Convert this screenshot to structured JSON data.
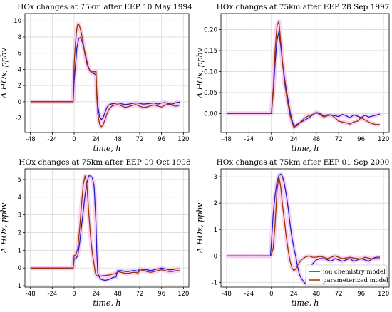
{
  "colors": {
    "ion": "#1f1fcc",
    "param": "#9a3300",
    "shade": "#f6c8ef",
    "grid": "#d9d9d9"
  },
  "legend": {
    "items": [
      {
        "label": "ion chemistry model",
        "color": "#1f1fcc"
      },
      {
        "label": "parameterized model",
        "color": "#9a3300"
      }
    ]
  },
  "chart_data": [
    {
      "type": "line",
      "title": "HOx changes at 75km after EEP 10 May 1994",
      "xlabel": "time, h",
      "ylabel": "Δ HOx, ppbv",
      "xlim": [
        -54,
        126
      ],
      "ylim": [
        -3.8,
        10.9
      ],
      "xticks": [
        -48,
        -24,
        0,
        24,
        48,
        72,
        96,
        120
      ],
      "yticks": [
        -2,
        0,
        2,
        4,
        6,
        8,
        10
      ],
      "grid": true,
      "series": [
        {
          "name": "ion chemistry model",
          "color": "#1f1fcc",
          "x": [
            -48,
            -1,
            0,
            1,
            2,
            3,
            5,
            7,
            9,
            11,
            13,
            15,
            17,
            19,
            21,
            23,
            24,
            25,
            26,
            28,
            30,
            32,
            34,
            36,
            38,
            40,
            42,
            45,
            48,
            52,
            56,
            60,
            64,
            68,
            72,
            76,
            80,
            84,
            88,
            92,
            96,
            100,
            104,
            108,
            112,
            116
          ],
          "y": [
            0,
            0,
            2.5,
            4.0,
            5.2,
            6.6,
            7.8,
            7.95,
            7.4,
            6.5,
            5.5,
            4.5,
            3.9,
            3.6,
            3.5,
            3.4,
            3.3,
            1.0,
            -0.5,
            -1.9,
            -2.2,
            -1.9,
            -1.3,
            -0.7,
            -0.4,
            -0.3,
            -0.25,
            -0.2,
            -0.15,
            -0.25,
            -0.35,
            -0.3,
            -0.2,
            -0.15,
            -0.2,
            -0.3,
            -0.25,
            -0.2,
            -0.15,
            -0.3,
            -0.15,
            -0.1,
            -0.25,
            -0.3,
            -0.1,
            -0.05
          ]
        },
        {
          "name": "parameterized model",
          "color": "#9a3300",
          "x": [
            -48,
            -1,
            0,
            1,
            2,
            3,
            4,
            5,
            6,
            8,
            10,
            12,
            14,
            16,
            18,
            20,
            22,
            23,
            24,
            25,
            26,
            28,
            30,
            32,
            34,
            36,
            38,
            40,
            42,
            45,
            48,
            52,
            56,
            60,
            64,
            68,
            72,
            76,
            80,
            84,
            88,
            92,
            96,
            100,
            104,
            108,
            112,
            116
          ],
          "y": [
            0,
            0,
            4.5,
            6.5,
            8.0,
            9.0,
            9.6,
            9.6,
            9.3,
            8.5,
            7.2,
            5.8,
            4.7,
            4.1,
            3.8,
            3.7,
            3.7,
            3.7,
            3.8,
            0.5,
            -1.5,
            -2.8,
            -3.1,
            -2.8,
            -2.2,
            -1.5,
            -1.0,
            -0.7,
            -0.5,
            -0.4,
            -0.35,
            -0.5,
            -0.7,
            -0.6,
            -0.45,
            -0.35,
            -0.55,
            -0.7,
            -0.65,
            -0.5,
            -0.4,
            -0.55,
            -0.65,
            -0.4,
            -0.3,
            -0.45,
            -0.55,
            -0.4
          ]
        }
      ]
    },
    {
      "type": "line",
      "title": "HOx changes at 75km after EEP 28 Sep 1997",
      "xlabel": "time, h",
      "ylabel": "Δ HOx, ppbv",
      "xlim": [
        -54,
        126
      ],
      "ylim": [
        -0.045,
        0.238
      ],
      "xticks": [
        -48,
        -24,
        0,
        24,
        48,
        72,
        96,
        120
      ],
      "yticks": [
        0.0,
        0.05,
        0.1,
        0.15,
        0.2
      ],
      "ytick_labels": [
        "0.00",
        "0.05",
        "0.10",
        "0.15",
        "0.20"
      ],
      "grid": true,
      "series": [
        {
          "name": "ion chemistry model",
          "color": "#1f1fcc",
          "x": [
            -48,
            0,
            2,
            4,
            6,
            8,
            10,
            12,
            14,
            16,
            18,
            20,
            22,
            24,
            28,
            32,
            36,
            40,
            44,
            48,
            52,
            56,
            60,
            64,
            68,
            72,
            76,
            80,
            84,
            88,
            92,
            96,
            100,
            104,
            108,
            112,
            116
          ],
          "y": [
            0,
            0,
            0.05,
            0.12,
            0.175,
            0.195,
            0.16,
            0.12,
            0.085,
            0.055,
            0.03,
            0.005,
            -0.015,
            -0.03,
            -0.025,
            -0.02,
            -0.015,
            -0.01,
            -0.003,
            0.003,
            0.0,
            -0.005,
            -0.003,
            -0.003,
            -0.005,
            -0.007,
            -0.002,
            -0.005,
            -0.01,
            -0.003,
            -0.006,
            -0.01,
            -0.004,
            -0.008,
            -0.006,
            -0.004,
            -0.001
          ]
        },
        {
          "name": "parameterized model",
          "color": "#9a3300",
          "x": [
            -48,
            0,
            2,
            4,
            6,
            8,
            10,
            12,
            14,
            16,
            18,
            20,
            22,
            24,
            28,
            32,
            36,
            40,
            44,
            48,
            52,
            56,
            60,
            64,
            68,
            72,
            76,
            80,
            84,
            88,
            92,
            96,
            100,
            104,
            108,
            112,
            116
          ],
          "y": [
            0,
            0,
            0.06,
            0.15,
            0.21,
            0.22,
            0.17,
            0.12,
            0.075,
            0.045,
            0.02,
            -0.005,
            -0.02,
            -0.033,
            -0.028,
            -0.018,
            -0.01,
            -0.005,
            -0.002,
            0.002,
            -0.002,
            -0.008,
            -0.005,
            -0.003,
            -0.01,
            -0.018,
            -0.02,
            -0.022,
            -0.025,
            -0.02,
            -0.018,
            -0.01,
            -0.015,
            -0.02,
            -0.024,
            -0.026,
            -0.026
          ]
        }
      ]
    },
    {
      "type": "line",
      "title": "HOx changes at 75km after EEP 09 Oct 1998",
      "xlabel": "time, h",
      "ylabel": "Δ HOx, ppbv",
      "xlim": [
        -54,
        126
      ],
      "ylim": [
        -1.08,
        5.6
      ],
      "xticks": [
        -48,
        -24,
        0,
        24,
        48,
        72,
        96,
        120
      ],
      "yticks": [
        -1,
        0,
        1,
        2,
        3,
        4,
        5
      ],
      "grid": true,
      "series": [
        {
          "name": "ion chemistry model",
          "color": "#1f1fcc",
          "x": [
            -48,
            -1,
            0,
            2,
            4,
            6,
            8,
            10,
            12,
            14,
            16,
            18,
            20,
            22,
            24,
            25,
            26,
            28,
            30,
            34,
            38,
            42,
            46,
            47,
            48,
            52,
            56,
            60,
            64,
            68,
            70,
            72,
            76,
            80,
            84,
            88,
            92,
            96,
            100,
            104,
            108,
            112,
            116
          ],
          "y": [
            0,
            0,
            0.5,
            0.55,
            0.7,
            1.4,
            2.3,
            3.2,
            4.1,
            4.8,
            5.2,
            5.2,
            5.1,
            4.6,
            2.5,
            0.8,
            -0.3,
            -0.55,
            -0.65,
            -0.7,
            -0.65,
            -0.55,
            -0.5,
            -0.3,
            -0.15,
            -0.15,
            -0.2,
            -0.2,
            -0.15,
            -0.15,
            -0.2,
            -0.05,
            -0.1,
            -0.1,
            -0.15,
            -0.1,
            -0.05,
            0.0,
            -0.05,
            -0.1,
            -0.1,
            -0.05,
            -0.05
          ]
        },
        {
          "name": "parameterized model",
          "color": "#9a3300",
          "x": [
            -48,
            -1,
            0,
            2,
            4,
            6,
            8,
            10,
            12,
            14,
            16,
            18,
            20,
            22,
            23,
            24,
            26,
            28,
            30,
            34,
            38,
            42,
            46,
            47,
            48,
            52,
            56,
            60,
            64,
            68,
            70,
            72,
            76,
            80,
            84,
            88,
            92,
            96,
            100,
            104,
            108,
            112,
            116
          ],
          "y": [
            0,
            0,
            0.7,
            0.75,
            1.1,
            2.2,
            3.5,
            4.7,
            5.2,
            4.7,
            3.2,
            1.8,
            0.8,
            0.2,
            -0.2,
            -0.4,
            -0.45,
            -0.45,
            -0.45,
            -0.42,
            -0.4,
            -0.35,
            -0.3,
            -0.25,
            -0.2,
            -0.25,
            -0.3,
            -0.3,
            -0.25,
            -0.25,
            -0.3,
            -0.15,
            -0.15,
            -0.2,
            -0.25,
            -0.2,
            -0.15,
            -0.1,
            -0.15,
            -0.2,
            -0.2,
            -0.15,
            -0.15
          ]
        }
      ]
    },
    {
      "type": "line",
      "title": "HOx changes at 75km after EEP 01 Sep 2000",
      "xlabel": "time, h",
      "ylabel": "Δ HOx, ppbv",
      "xlim": [
        -54,
        126
      ],
      "ylim": [
        -1.18,
        3.3
      ],
      "xticks": [
        -48,
        -24,
        0,
        24,
        48,
        72,
        96,
        120
      ],
      "yticks": [
        -1,
        0,
        1,
        2,
        3
      ],
      "grid": true,
      "legend": "lower-right",
      "series": [
        {
          "name": "ion chemistry model",
          "color": "#1f1fcc",
          "x": [
            -48,
            -1,
            0,
            2,
            4,
            6,
            8,
            10,
            12,
            14,
            16,
            18,
            20,
            22,
            24,
            26,
            28,
            30,
            32,
            34,
            36,
            38,
            40,
            44,
            48,
            52,
            56,
            60,
            64,
            68,
            72,
            76,
            80,
            84,
            88,
            92,
            96,
            100,
            104,
            108,
            112,
            116
          ],
          "y": [
            0,
            0,
            0.5,
            1.6,
            2.3,
            2.8,
            3.05,
            3.1,
            3.0,
            2.7,
            2.3,
            1.8,
            1.2,
            0.7,
            0.3,
            0.0,
            -0.4,
            -0.7,
            -0.85,
            -0.95,
            -1.05,
            -0.9,
            -0.6,
            -0.3,
            -0.15,
            -0.1,
            -0.1,
            -0.15,
            -0.2,
            -0.1,
            -0.15,
            -0.2,
            -0.15,
            -0.1,
            -0.2,
            -0.15,
            -0.1,
            -0.15,
            -0.2,
            -0.1,
            -0.05,
            -0.05
          ]
        },
        {
          "name": "parameterized model",
          "color": "#9a3300",
          "x": [
            -48,
            -1,
            0,
            2,
            4,
            6,
            8,
            10,
            12,
            14,
            16,
            18,
            20,
            22,
            24,
            26,
            28,
            30,
            32,
            34,
            36,
            40,
            44,
            48,
            52,
            56,
            60,
            64,
            68,
            72,
            76,
            80,
            84,
            88,
            92,
            96,
            100,
            104,
            108,
            112,
            116
          ],
          "y": [
            0,
            0,
            0.05,
            0.3,
            1.2,
            2.5,
            3.0,
            2.6,
            1.9,
            1.3,
            0.7,
            0.2,
            -0.2,
            -0.45,
            -0.55,
            -0.5,
            -0.35,
            -0.25,
            -0.15,
            -0.1,
            -0.05,
            0.0,
            -0.05,
            -0.05,
            -0.02,
            -0.05,
            -0.1,
            -0.05,
            0.0,
            -0.05,
            -0.1,
            -0.08,
            -0.05,
            -0.08,
            -0.1,
            -0.12,
            -0.05,
            -0.08,
            -0.12,
            -0.1,
            -0.1
          ]
        }
      ]
    }
  ]
}
